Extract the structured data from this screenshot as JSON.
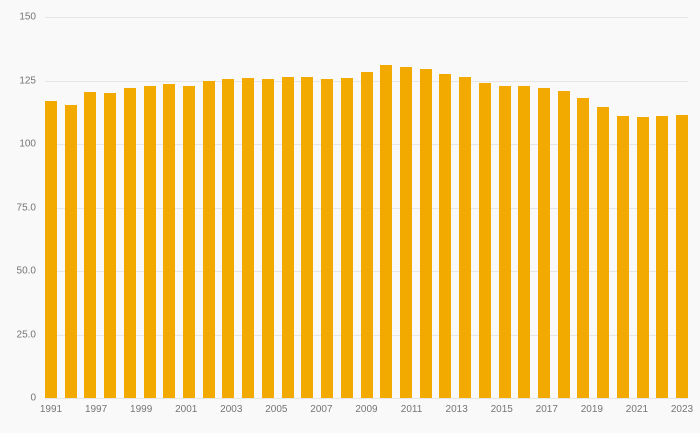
{
  "chart_data": {
    "type": "bar",
    "title": "",
    "xlabel": "",
    "ylabel": "",
    "x": [
      1991,
      1992,
      1993,
      1994,
      1995,
      1996,
      1997,
      1998,
      1999,
      2000,
      2001,
      2002,
      2003,
      2004,
      2005,
      2006,
      2007,
      2008,
      2009,
      2010,
      2011,
      2012,
      2013,
      2014,
      2015,
      2016,
      2017,
      2018,
      2019,
      2020,
      2021,
      2022,
      2023
    ],
    "values": [
      117,
      115.5,
      120.5,
      120,
      122,
      123,
      123.5,
      123,
      125,
      125.5,
      126,
      125.5,
      126.5,
      126.5,
      125.5,
      126,
      128.5,
      131,
      130.5,
      129.5,
      127.5,
      126.5,
      124,
      123,
      123,
      122,
      121,
      118,
      114.5,
      111,
      110.5,
      111,
      111.5
    ],
    "x_tick_labels": [
      "1991",
      "1997",
      "1999",
      "2001",
      "2003",
      "2005",
      "2007",
      "2009",
      "2011",
      "2013",
      "2015",
      "2017",
      "2019",
      "2021",
      "2023"
    ],
    "y_ticks": [
      {
        "label": "0",
        "value": 0
      },
      {
        "label": "25.0",
        "value": 25
      },
      {
        "label": "50.0",
        "value": 50
      },
      {
        "label": "75.0",
        "value": 75
      },
      {
        "label": "100",
        "value": 100
      },
      {
        "label": "125",
        "value": 125
      },
      {
        "label": "150",
        "value": 150
      }
    ],
    "ylim": [
      0,
      150
    ],
    "grid": "horizontal",
    "legend": "none",
    "bar_color": "#F2A900",
    "background_color": "#f9f9f9",
    "gridline_color": "#e6e6e6",
    "axis_text_color": "#757575"
  }
}
